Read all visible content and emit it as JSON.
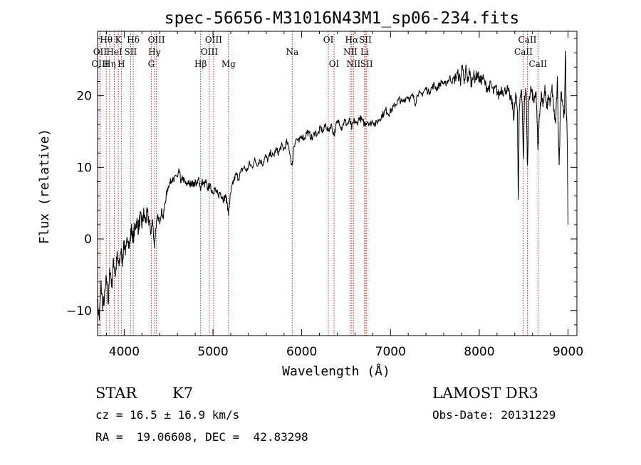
{
  "chart_data": {
    "type": "line",
    "title": "spec-56656-M31016N43M1_sp06-234.fits",
    "xlabel": "Wavelength (Å)",
    "ylabel": "Flux (relative)",
    "xlim": [
      3700,
      9100
    ],
    "ylim": [
      -13.5,
      29
    ],
    "xticks": [
      4000,
      5000,
      6000,
      7000,
      8000,
      9000
    ],
    "yticks": [
      -10,
      0,
      10,
      20
    ],
    "ytick_labels": [
      "−10",
      "0",
      "10",
      "20"
    ],
    "lines": [
      {
        "label": "Hθ",
        "x": 3798,
        "row": 0
      },
      {
        "label": "OII",
        "x": 3727,
        "row": 1
      },
      {
        "label": "OIII",
        "x": 3727,
        "row": 2
      },
      {
        "label": "Hη",
        "x": 3835,
        "row": 2
      },
      {
        "label": "HeI",
        "x": 3889,
        "row": 1
      },
      {
        "label": "K",
        "x": 3934,
        "row": 0
      },
      {
        "label": "H",
        "x": 3968,
        "row": 2
      },
      {
        "label": "SII",
        "x": 4072,
        "row": 1
      },
      {
        "label": "Hδ",
        "x": 4102,
        "row": 0
      },
      {
        "label": "G",
        "x": 4305,
        "row": 2
      },
      {
        "label": "Hγ",
        "x": 4341,
        "row": 1
      },
      {
        "label": "OIII",
        "x": 4363,
        "row": 0
      },
      {
        "label": "Hβ",
        "x": 4861,
        "row": 2
      },
      {
        "label": "OIII",
        "x": 4959,
        "row": 1
      },
      {
        "label": "OIII",
        "x": 5007,
        "row": 0
      },
      {
        "label": "Mg",
        "x": 5175,
        "row": 2
      },
      {
        "label": "Na",
        "x": 5893,
        "row": 1
      },
      {
        "label": "OI",
        "x": 6300,
        "row": 0
      },
      {
        "label": "OI",
        "x": 6364,
        "row": 2
      },
      {
        "label": "NII",
        "x": 6548,
        "row": 1
      },
      {
        "label": "Hα",
        "x": 6563,
        "row": 0
      },
      {
        "label": "NII",
        "x": 6583,
        "row": 2
      },
      {
        "label": "SII",
        "x": 6716,
        "row": 0
      },
      {
        "label": "Li",
        "x": 6708,
        "row": 1
      },
      {
        "label": "SII",
        "x": 6731,
        "row": 2
      },
      {
        "label": "CaII",
        "x": 8498,
        "row": 1
      },
      {
        "label": "CaII",
        "x": 8542,
        "row": 0
      },
      {
        "label": "CaII",
        "x": 8662,
        "row": 2
      }
    ],
    "series": [
      {
        "name": "flux",
        "points": [
          [
            3700,
            -9
          ],
          [
            3720,
            -11
          ],
          [
            3740,
            -6.5
          ],
          [
            3760,
            -9.5
          ],
          [
            3780,
            -8
          ],
          [
            3800,
            -5.5
          ],
          [
            3820,
            -9
          ],
          [
            3840,
            -4
          ],
          [
            3860,
            -6.5
          ],
          [
            3880,
            -3
          ],
          [
            3900,
            -5
          ],
          [
            3920,
            -2.5
          ],
          [
            3940,
            -4
          ],
          [
            3960,
            -1.5
          ],
          [
            3980,
            -3
          ],
          [
            4000,
            -0.5
          ],
          [
            4020,
            -2
          ],
          [
            4040,
            0.5
          ],
          [
            4060,
            -1
          ],
          [
            4080,
            1.5
          ],
          [
            4100,
            0
          ],
          [
            4120,
            1.5
          ],
          [
            4140,
            2.5
          ],
          [
            4160,
            1.5
          ],
          [
            4180,
            3
          ],
          [
            4200,
            2
          ],
          [
            4220,
            3.5
          ],
          [
            4240,
            2.5
          ],
          [
            4260,
            3.5
          ],
          [
            4280,
            2.5
          ],
          [
            4300,
            1
          ],
          [
            4320,
            2.5
          ],
          [
            4340,
            -1
          ],
          [
            4360,
            2
          ],
          [
            4380,
            3
          ],
          [
            4400,
            2.5
          ],
          [
            4420,
            4
          ],
          [
            4440,
            3
          ],
          [
            4460,
            5
          ],
          [
            4480,
            6.5
          ],
          [
            4500,
            7.5
          ],
          [
            4520,
            8
          ],
          [
            4540,
            8.5
          ],
          [
            4560,
            8
          ],
          [
            4580,
            9
          ],
          [
            4600,
            8.5
          ],
          [
            4620,
            9.5
          ],
          [
            4640,
            8
          ],
          [
            4660,
            8.5
          ],
          [
            4680,
            8
          ],
          [
            4700,
            7.5
          ],
          [
            4720,
            8
          ],
          [
            4740,
            7.5
          ],
          [
            4760,
            8
          ],
          [
            4780,
            7.5
          ],
          [
            4800,
            8
          ],
          [
            4820,
            7.5
          ],
          [
            4840,
            8.5
          ],
          [
            4860,
            7
          ],
          [
            4880,
            8
          ],
          [
            4900,
            7.5
          ],
          [
            4920,
            8
          ],
          [
            4940,
            7
          ],
          [
            4960,
            7.5
          ],
          [
            4980,
            7
          ],
          [
            5000,
            6.5
          ],
          [
            5020,
            7
          ],
          [
            5040,
            6.5
          ],
          [
            5060,
            6
          ],
          [
            5080,
            6.5
          ],
          [
            5100,
            6
          ],
          [
            5120,
            5.5
          ],
          [
            5140,
            6
          ],
          [
            5160,
            5
          ],
          [
            5175,
            3.5
          ],
          [
            5190,
            5.5
          ],
          [
            5210,
            7
          ],
          [
            5230,
            8
          ],
          [
            5260,
            9
          ],
          [
            5290,
            8.5
          ],
          [
            5320,
            9.5
          ],
          [
            5350,
            10
          ],
          [
            5380,
            9.5
          ],
          [
            5410,
            10.5
          ],
          [
            5440,
            10
          ],
          [
            5470,
            11
          ],
          [
            5500,
            10.5
          ],
          [
            5530,
            11
          ],
          [
            5560,
            10.5
          ],
          [
            5590,
            11.5
          ],
          [
            5620,
            11
          ],
          [
            5650,
            12
          ],
          [
            5680,
            11.5
          ],
          [
            5710,
            12.5
          ],
          [
            5740,
            12
          ],
          [
            5770,
            13
          ],
          [
            5800,
            12.5
          ],
          [
            5830,
            13.5
          ],
          [
            5860,
            12.5
          ],
          [
            5893,
            10
          ],
          [
            5910,
            13
          ],
          [
            5940,
            14
          ],
          [
            5970,
            13.5
          ],
          [
            6000,
            14.5
          ],
          [
            6030,
            14
          ],
          [
            6060,
            15
          ],
          [
            6090,
            14.5
          ],
          [
            6120,
            14
          ],
          [
            6150,
            15
          ],
          [
            6180,
            14.5
          ],
          [
            6210,
            15.5
          ],
          [
            6240,
            15
          ],
          [
            6270,
            16
          ],
          [
            6300,
            15
          ],
          [
            6330,
            16
          ],
          [
            6364,
            14.5
          ],
          [
            6390,
            16
          ],
          [
            6420,
            16.5
          ],
          [
            6450,
            15.5
          ],
          [
            6480,
            16.5
          ],
          [
            6510,
            16
          ],
          [
            6540,
            16.5
          ],
          [
            6563,
            15.5
          ],
          [
            6590,
            16.5
          ],
          [
            6620,
            16
          ],
          [
            6650,
            17
          ],
          [
            6680,
            16.5
          ],
          [
            6710,
            16
          ],
          [
            6740,
            16.5
          ],
          [
            6770,
            16
          ],
          [
            6800,
            16.5
          ],
          [
            6830,
            16
          ],
          [
            6860,
            16.5
          ],
          [
            6890,
            17
          ],
          [
            6920,
            17.5
          ],
          [
            6950,
            18
          ],
          [
            6980,
            17.5
          ],
          [
            7010,
            18
          ],
          [
            7040,
            18.5
          ],
          [
            7070,
            19
          ],
          [
            7100,
            19.5
          ],
          [
            7130,
            19
          ],
          [
            7160,
            19.5
          ],
          [
            7190,
            20
          ],
          [
            7220,
            19.5
          ],
          [
            7250,
            20
          ],
          [
            7280,
            19
          ],
          [
            7310,
            20.5
          ],
          [
            7340,
            20
          ],
          [
            7370,
            20.5
          ],
          [
            7400,
            21
          ],
          [
            7430,
            20.5
          ],
          [
            7460,
            21
          ],
          [
            7490,
            21.5
          ],
          [
            7520,
            21
          ],
          [
            7550,
            21.5
          ],
          [
            7580,
            22
          ],
          [
            7610,
            21.5
          ],
          [
            7640,
            22
          ],
          [
            7670,
            22.5
          ],
          [
            7700,
            22
          ],
          [
            7730,
            22.5
          ],
          [
            7760,
            23
          ],
          [
            7790,
            22
          ],
          [
            7810,
            25
          ],
          [
            7830,
            21
          ],
          [
            7850,
            24
          ],
          [
            7870,
            22
          ],
          [
            7890,
            23.5
          ],
          [
            7910,
            21.5
          ],
          [
            7930,
            23
          ],
          [
            7950,
            22.5
          ],
          [
            7980,
            23
          ],
          [
            8010,
            22
          ],
          [
            8040,
            22.5
          ],
          [
            8070,
            21.5
          ],
          [
            8100,
            21
          ],
          [
            8130,
            21.5
          ],
          [
            8160,
            20.5
          ],
          [
            8190,
            21
          ],
          [
            8220,
            20
          ],
          [
            8250,
            21
          ],
          [
            8280,
            20.5
          ],
          [
            8310,
            21
          ],
          [
            8340,
            20
          ],
          [
            8370,
            19
          ],
          [
            8390,
            17
          ],
          [
            8410,
            20
          ],
          [
            8430,
            18
          ],
          [
            8440,
            5
          ],
          [
            8450,
            18
          ],
          [
            8470,
            21
          ],
          [
            8480,
            20
          ],
          [
            8498,
            11
          ],
          [
            8510,
            20
          ],
          [
            8530,
            20.5
          ],
          [
            8542,
            9.5
          ],
          [
            8560,
            19
          ],
          [
            8580,
            21
          ],
          [
            8600,
            20
          ],
          [
            8620,
            19
          ],
          [
            8640,
            20.5
          ],
          [
            8662,
            12
          ],
          [
            8680,
            18
          ],
          [
            8700,
            20
          ],
          [
            8720,
            19
          ],
          [
            8740,
            21
          ],
          [
            8760,
            18
          ],
          [
            8780,
            20
          ],
          [
            8800,
            19
          ],
          [
            8820,
            21
          ],
          [
            8840,
            18
          ],
          [
            8860,
            16
          ],
          [
            8880,
            22
          ],
          [
            8900,
            10
          ],
          [
            8920,
            21
          ],
          [
            8940,
            19
          ],
          [
            8960,
            17
          ],
          [
            8970,
            27
          ],
          [
            8980,
            18
          ],
          [
            8990,
            15
          ],
          [
            9000,
            2
          ]
        ]
      }
    ],
    "info": {
      "object_class": "STAR",
      "subclass": "K7",
      "cz": "cz = 16.5 ± 16.9 km/s",
      "coords": "RA =  19.06608, DEC =  42.83298",
      "survey": "LAMOST DR3",
      "obs_date": "Obs-Date: 20131229"
    },
    "colors": {
      "line_marker": "#a83a2a",
      "spectrum": "#000000",
      "axes": "#000000"
    }
  }
}
